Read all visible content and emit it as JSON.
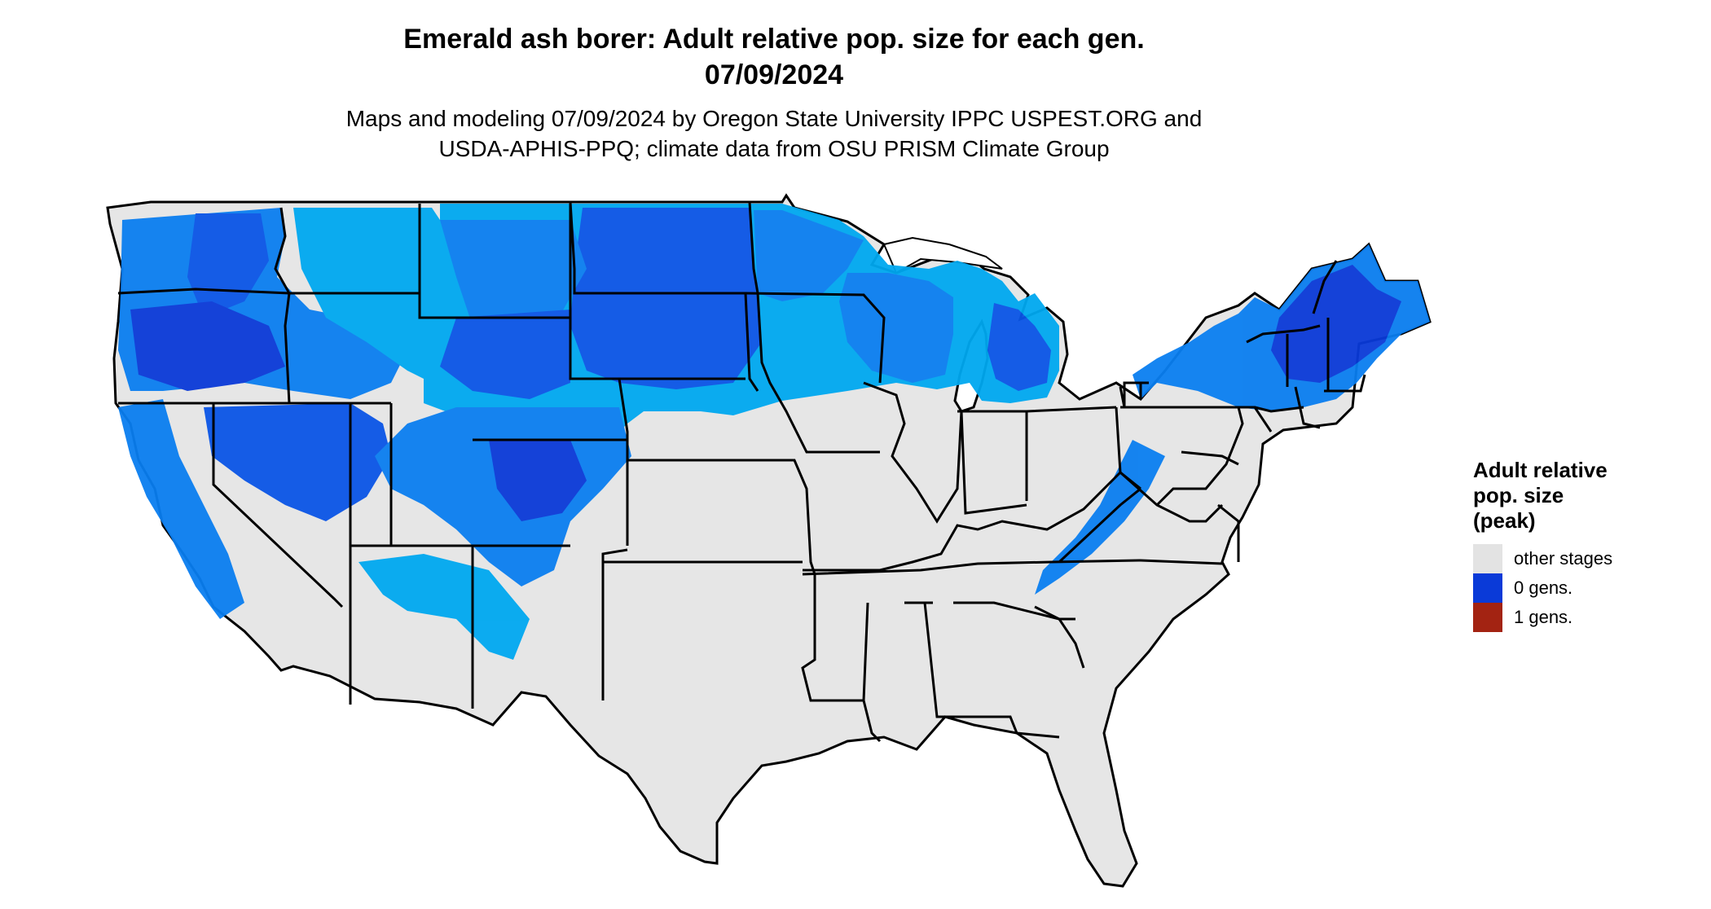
{
  "header": {
    "title_line1": "Emerald ash borer: Adult relative pop. size for each gen.",
    "title_line2": "07/09/2024",
    "subtitle_line1": "Maps and modeling 07/09/2024 by Oregon State University IPPC USPEST.ORG and",
    "subtitle_line2": "USDA-APHIS-PPQ; climate data from OSU PRISM Climate Group"
  },
  "legend": {
    "title_line1": "Adult relative",
    "title_line2": "pop. size",
    "title_line3": "(peak)",
    "items": [
      {
        "label": "other stages",
        "color": "#e3e3e3"
      },
      {
        "label": "0 gens.",
        "color": "#0a3ad8"
      },
      {
        "label": "1 gens.",
        "color": "#a32312"
      }
    ]
  },
  "map": {
    "land_color": "#e6e6e6",
    "border_color": "#000000",
    "shades": [
      "#00a8f0",
      "#0a7ef0",
      "#0a55e6",
      "#0a3ad8"
    ]
  }
}
